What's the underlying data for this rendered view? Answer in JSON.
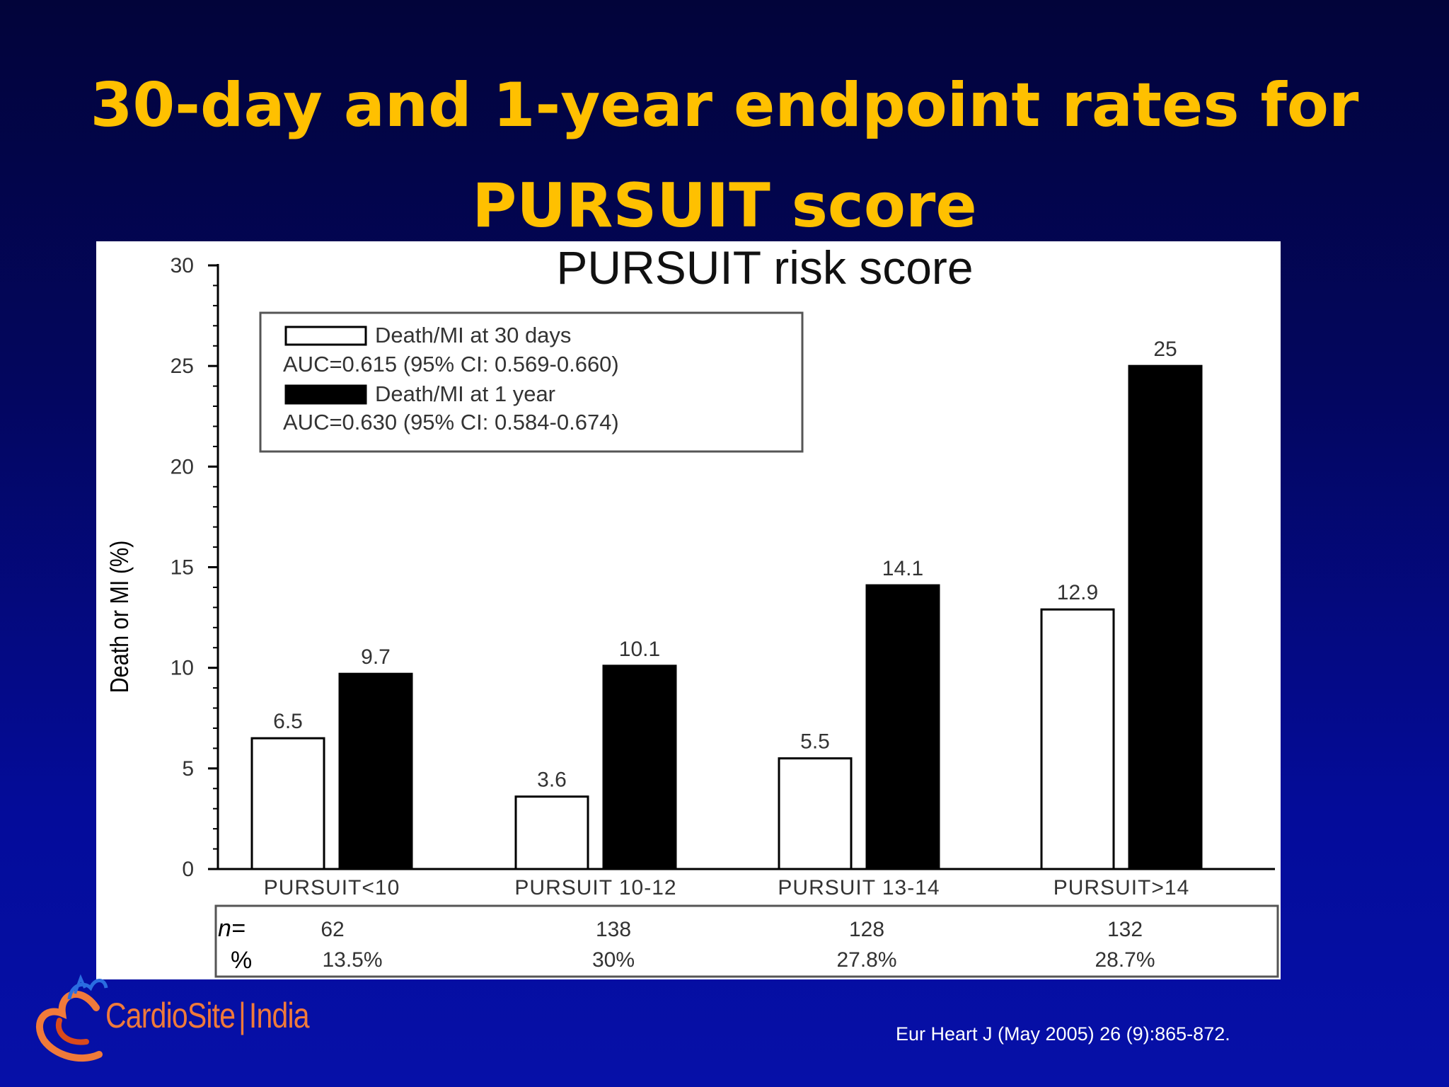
{
  "slide": {
    "title_line1": "30-day and 1-year endpoint rates for",
    "title_line2": "PURSUIT score",
    "citation": "Eur Heart J (May 2005) 26 (9):865-872.",
    "logo_text_a": "CardioSite",
    "logo_text_b": "India",
    "colors": {
      "background_top": "#02043a",
      "background_bottom": "#0610a8",
      "title": "#ffc000",
      "logo": "#f07a3a"
    }
  },
  "chart_data": {
    "type": "bar",
    "title": "PURSUIT risk score",
    "ylabel": "Death or MI (%)",
    "xlabel": "",
    "ylim": [
      0,
      30
    ],
    "yticks": [
      0,
      5,
      10,
      15,
      20,
      25,
      30
    ],
    "categories": [
      "PURSUIT<10",
      "PURSUIT 10-12",
      "PURSUIT 13-14",
      "PURSUIT>14"
    ],
    "series": [
      {
        "name": "Death/MI at 30 days",
        "fill": "#ffffff",
        "labels": [
          "6.5",
          "3.6",
          "5.5",
          "12.9"
        ],
        "values": [
          6.5,
          3.6,
          5.5,
          12.9
        ]
      },
      {
        "name": "Death/MI at 1 year",
        "fill": "#000000",
        "labels": [
          "9.7",
          "10.1",
          "14.1",
          "25"
        ],
        "values": [
          9.7,
          10.1,
          14.1,
          25
        ]
      }
    ],
    "legend": {
      "placement": "top-left",
      "lines": [
        "Death/MI at 30 days",
        "AUC=0.615 (95% CI: 0.569-0.660)",
        "Death/MI at 1 year",
        "AUC=0.630 (95% CI: 0.584-0.674)"
      ]
    },
    "table": {
      "row_labels": [
        "n=",
        "%"
      ],
      "n": [
        "62",
        "138",
        "128",
        "132"
      ],
      "percent": [
        "13.5%",
        "30%",
        "27.8%",
        "28.7%"
      ]
    },
    "grid": false
  }
}
